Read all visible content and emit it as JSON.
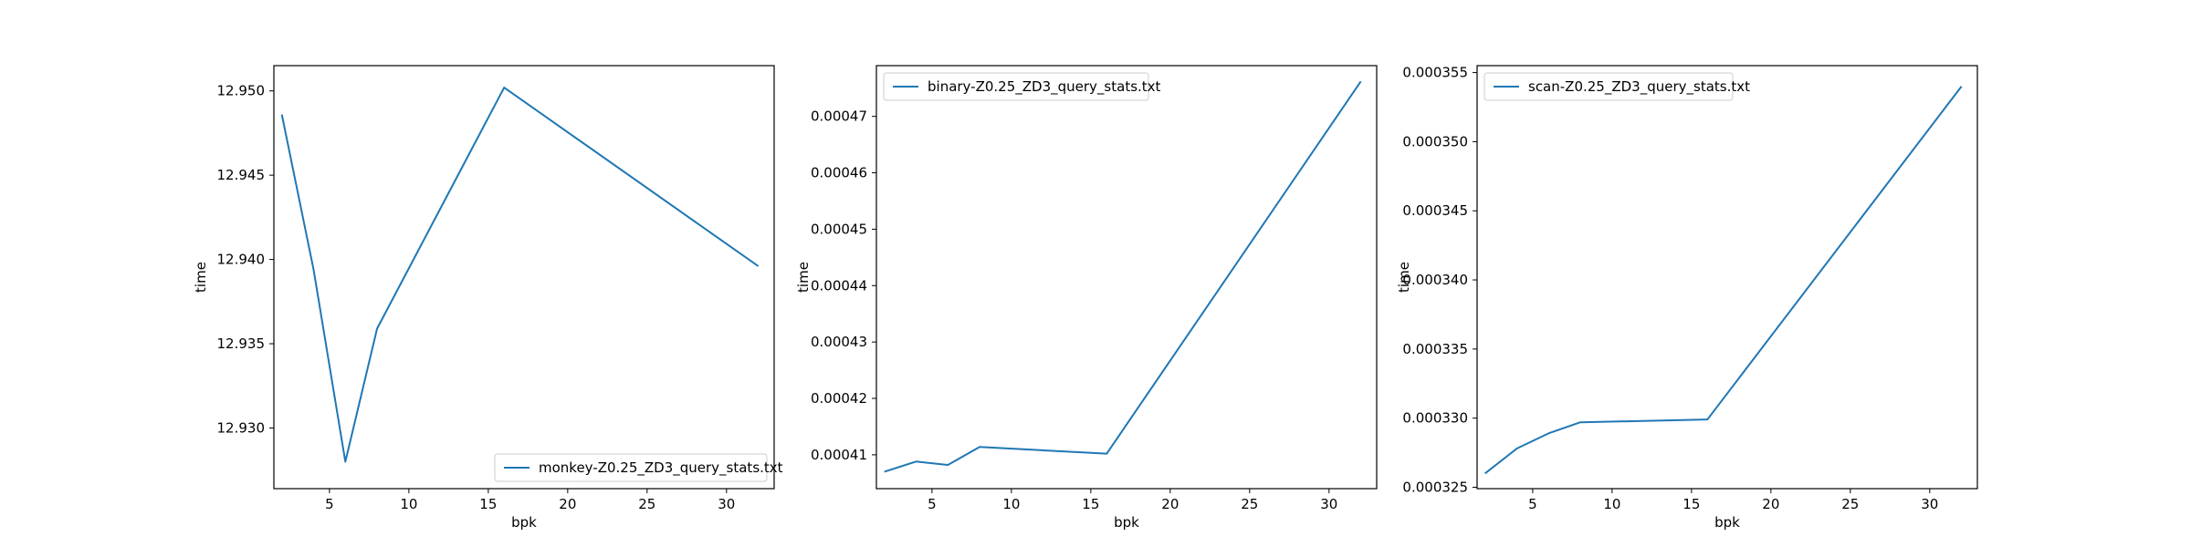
{
  "chart_data": [
    {
      "type": "line",
      "xlabel": "bpk",
      "ylabel": "time",
      "xlim": [
        1.5,
        33.0
      ],
      "ylim": [
        12.9264,
        12.9515
      ],
      "xticks": [
        5,
        10,
        15,
        20,
        25,
        30
      ],
      "yticks": [
        12.93,
        12.935,
        12.94,
        12.945,
        12.95
      ],
      "ytick_labels": [
        "12.930",
        "12.935",
        "12.940",
        "12.945",
        "12.950"
      ],
      "legend_position": "lower-right",
      "grid": false,
      "series": [
        {
          "name": "monkey-Z0.25_ZD3_query_stats.txt",
          "color": "#1f77b4",
          "x": [
            2,
            4,
            6,
            8,
            16,
            32
          ],
          "y": [
            12.9486,
            12.9394,
            12.928,
            12.9359,
            12.9502,
            12.9396
          ]
        }
      ]
    },
    {
      "type": "line",
      "xlabel": "bpk",
      "ylabel": "time",
      "xlim": [
        1.5,
        33.0
      ],
      "ylim": [
        0.000404,
        0.000479
      ],
      "xticks": [
        5,
        10,
        15,
        20,
        25,
        30
      ],
      "yticks": [
        0.00041,
        0.00042,
        0.00043,
        0.00044,
        0.00045,
        0.00046,
        0.00047
      ],
      "ytick_labels": [
        "0.00041",
        "0.00042",
        "0.00043",
        "0.00044",
        "0.00045",
        "0.00046",
        "0.00047"
      ],
      "legend_position": "top-left",
      "grid": false,
      "series": [
        {
          "name": "binary-Z0.25_ZD3_query_stats.txt",
          "color": "#1f77b4",
          "x": [
            2,
            4,
            6,
            8,
            16,
            32
          ],
          "y": [
            0.000407,
            0.0004088,
            0.0004082,
            0.0004114,
            0.0004102,
            0.0004762
          ]
        }
      ]
    },
    {
      "type": "line",
      "xlabel": "bpk",
      "ylabel": "time",
      "xlim": [
        1.5,
        33.0
      ],
      "ylim": [
        0.0003249,
        0.0003555
      ],
      "xticks": [
        5,
        10,
        15,
        20,
        25,
        30
      ],
      "yticks": [
        0.000325,
        0.00033,
        0.000335,
        0.00034,
        0.000345,
        0.00035,
        0.000355
      ],
      "ytick_labels": [
        "0.000325",
        "0.000330",
        "0.000335",
        "0.000340",
        "0.000345",
        "0.000350",
        "0.000355"
      ],
      "legend_position": "top-left",
      "grid": false,
      "series": [
        {
          "name": "scan-Z0.25_ZD3_query_stats.txt",
          "color": "#1f77b4",
          "x": [
            2,
            4,
            6,
            8,
            16,
            32
          ],
          "y": [
            0.000326,
            0.0003278,
            0.0003289,
            0.0003297,
            0.0003299,
            0.000354
          ]
        }
      ]
    }
  ]
}
